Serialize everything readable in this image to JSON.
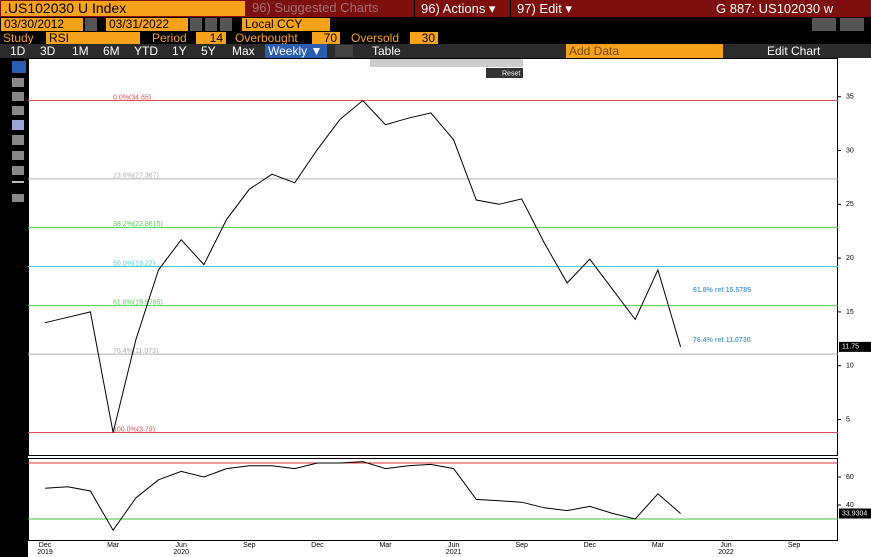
{
  "header": {
    "ticker": ".US102030 U  Index",
    "suggested": "96) Suggested Charts",
    "actions": "96) Actions ▾",
    "edit": "97) Edit ▾",
    "page_id": "G 887: US102030 w"
  },
  "settings": {
    "start_date": "03/30/2012",
    "end_date": "03/31/2022",
    "currency": "Local CCY"
  },
  "study": {
    "label": "Study",
    "value": "RSI",
    "period_label": "Period",
    "period": 14,
    "overbought_label": "Overbought",
    "overbought": 70,
    "oversold_label": "Oversold",
    "oversold": 30
  },
  "ranges": [
    "1D",
    "3D",
    "1M",
    "6M",
    "YTD",
    "1Y",
    "5Y",
    "Max"
  ],
  "frequency": "Weekly ▼",
  "table": "Table",
  "add_data": "Add Data",
  "edit_chart": "Edit Chart",
  "chart_toolbar": {
    "reset": "Reset"
  },
  "chart_data": [
    {
      "type": "line",
      "categories": [
        "Dec",
        null,
        null,
        "Mar",
        null,
        null,
        "Jun",
        null,
        null,
        "Sep",
        null,
        null,
        "Dec",
        null,
        null,
        "Mar",
        null,
        null,
        "Jun",
        null,
        null,
        "Sep",
        null,
        null,
        "Dec",
        null,
        null,
        "Mar",
        null,
        null,
        "Jun",
        null,
        null,
        "Sep",
        null
      ],
      "category_years": [
        "2019",
        null,
        null,
        null,
        null,
        null,
        "2020",
        null,
        null,
        null,
        null,
        null,
        null,
        null,
        null,
        null,
        null,
        null,
        "2021",
        null,
        null,
        null,
        null,
        null,
        null,
        null,
        null,
        null,
        null,
        null,
        "2022",
        null,
        null,
        null,
        null
      ],
      "values": [
        14,
        14.5,
        15,
        3.79,
        12.4,
        18.9,
        21.7,
        19.4,
        23.6,
        26.4,
        27.8,
        27,
        30.1,
        32.9,
        34.65,
        32.4,
        33,
        33.5,
        31,
        25.4,
        25,
        25.5,
        21.4,
        17.7,
        19.9,
        17.1,
        14.3,
        18.9,
        11.75,
        null,
        null,
        null,
        null,
        null,
        null
      ],
      "color": "#000000",
      "ylim": [
        1.7,
        38.6
      ],
      "yticks": [
        5,
        10,
        15,
        20,
        25,
        30,
        35
      ],
      "grid": false,
      "levels": [
        {
          "value": 34.65,
          "label": "0.0%(34.65)",
          "color": "#e05050"
        },
        {
          "value": 27.367,
          "label": "23.6%(27.367)",
          "color": "#b0b0b0"
        },
        {
          "value": 22.8615,
          "label": "38.2%(22.8615)",
          "color": "#50d050"
        },
        {
          "value": 19.22,
          "label": "50.0%(19.22)",
          "color": "#40d0e0"
        },
        {
          "value": 15.5785,
          "label": "61.8%(15.5785)",
          "color": "#50d050"
        },
        {
          "value": 11.073,
          "label": "76.4%(11.073)",
          "color": "#b0b0b0"
        },
        {
          "value": 3.79,
          "label": "100.0%(3.79)",
          "color": "#e05050"
        }
      ],
      "annotations": [
        "61.8% ret 15.5785",
        "76.4% ret 11.0730"
      ],
      "last_value": 11.75
    },
    {
      "type": "line",
      "values": [
        52,
        53,
        50,
        22,
        45,
        58,
        64,
        60,
        66,
        68,
        68,
        66,
        70,
        70,
        71,
        66,
        68,
        69,
        66,
        44,
        43,
        42,
        38,
        36,
        39,
        34,
        30,
        48,
        33.93,
        null,
        null,
        null,
        null,
        null,
        null
      ],
      "color": "#000000",
      "ylim": [
        15,
        73.6
      ],
      "yticks": [
        40,
        60
      ],
      "last_value": 33.9304
    }
  ]
}
